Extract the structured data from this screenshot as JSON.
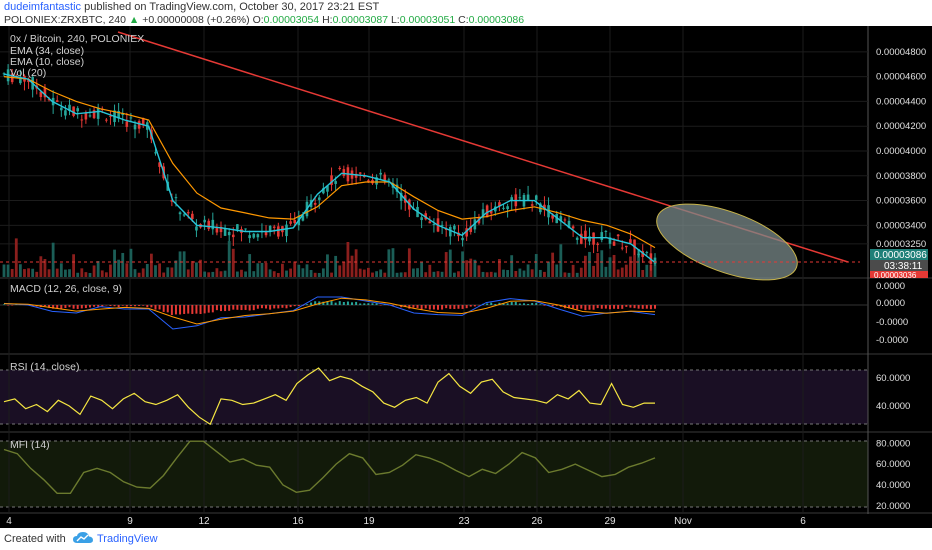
{
  "header": {
    "author": "dudeimfantastic",
    "published_text": " published on TradingView.com, October 30, 2017 23:21 EST",
    "symbol": "POLONIEX:ZRXBTC, 240",
    "change": "+0.00000008 (+0.26%)",
    "o_label": "O:",
    "o_value": "0.00003054",
    "h_label": "H:",
    "h_value": "0.00003087",
    "l_label": "L:",
    "l_value": "0.00003051",
    "c_label": "C:",
    "c_value": "0.00003086"
  },
  "footer": {
    "created_with": "Created with",
    "brand": "TradingView"
  },
  "colors": {
    "background": "#000000",
    "grid": "#1c1c1c",
    "ema34": "#ff9800",
    "ema10": "#26c6da",
    "trendline": "#e53935",
    "candle_up": "#26a69a",
    "candle_down": "#e53935",
    "rsi_line": "#f5e642",
    "rsi_band": "#1a0f24",
    "mfi_line": "#6b7a2e",
    "mfi_band": "#121a0a",
    "ellipse_fill": "#7a8a8a",
    "ellipse_stroke": "#c8b44a"
  },
  "chart_data": [
    {
      "type": "candlestick",
      "title": "0x / Bitcoin, 240, POLONIEX",
      "legend": [
        "EMA (34, close)",
        "EMA (10, close)",
        "Vol (20)"
      ],
      "x_ticks": [
        "4",
        "9",
        "12",
        "16",
        "19",
        "23",
        "26",
        "29",
        "Nov",
        "6"
      ],
      "y_ticks": [
        "0.00004800",
        "0.00004600",
        "0.00004400",
        "0.00004200",
        "0.00004000",
        "0.00003800",
        "0.00003600",
        "0.00003400",
        "0.00003250"
      ],
      "y_tick_values": [
        4.8e-05,
        4.6e-05,
        4.4e-05,
        4.2e-05,
        4e-05,
        3.8e-05,
        3.6e-05,
        3.4e-05,
        3.25e-05
      ],
      "ylim": [
        3.08e-05,
        4.96e-05
      ],
      "last_price_label": "0.00003086",
      "countdown_label": "03:38:11",
      "red_level_label": "0.00003036",
      "ema10_close": [
        4.62e-05,
        4.58e-05,
        4.4e-05,
        4.3e-05,
        4.32e-05,
        4.25e-05,
        4.2e-05,
        3.6e-05,
        3.4e-05,
        3.38e-05,
        3.35e-05,
        3.35e-05,
        3.38e-05,
        3.65e-05,
        3.82e-05,
        3.8e-05,
        3.75e-05,
        3.53e-05,
        3.4e-05,
        3.32e-05,
        3.5e-05,
        3.6e-05,
        3.6e-05,
        3.45e-05,
        3.3e-05,
        3.3e-05,
        3.25e-05,
        3.1e-05
      ],
      "ema34_close": [
        4.6e-05,
        4.58e-05,
        4.48e-05,
        4.4e-05,
        4.34e-05,
        4.3e-05,
        4.25e-05,
        3.9e-05,
        3.66e-05,
        3.54e-05,
        3.5e-05,
        3.46e-05,
        3.45e-05,
        3.55e-05,
        3.72e-05,
        3.75e-05,
        3.75e-05,
        3.63e-05,
        3.52e-05,
        3.45e-05,
        3.47e-05,
        3.52e-05,
        3.55e-05,
        3.5e-05,
        3.44e-05,
        3.4e-05,
        3.33e-05,
        3.22e-05
      ],
      "trendline": [
        [
          0,
          4.98e-05
        ],
        [
          1.0,
          3.1e-05
        ]
      ],
      "annotation": "ellipse near trendline end"
    },
    {
      "type": "line",
      "title": "MACD (12, 26, close, 9)",
      "y_ticks": [
        "0.0000",
        "0.0000",
        "-0.0000",
        "-0.0000"
      ]
    },
    {
      "type": "line",
      "title": "RSI (14, close)",
      "y_ticks": [
        "60.0000",
        "40.0000"
      ],
      "y_tick_values": [
        60,
        40
      ],
      "ylim": [
        25,
        72
      ],
      "values": [
        43,
        45,
        38,
        41,
        36,
        44,
        40,
        34,
        47,
        44,
        38,
        45,
        49,
        43,
        41,
        44,
        48,
        39,
        32,
        27,
        45,
        44,
        41,
        42,
        45,
        48,
        44,
        56,
        62,
        67,
        58,
        61,
        59,
        54,
        50,
        42,
        39,
        44,
        46,
        42,
        57,
        63,
        54,
        49,
        57,
        59,
        50,
        46,
        45,
        44,
        42,
        48,
        45,
        51,
        42,
        41,
        56,
        41,
        39,
        42,
        42
      ]
    },
    {
      "type": "line",
      "title": "MFI (14)",
      "y_ticks": [
        "80.0000",
        "60.0000",
        "40.0000",
        "20.0000"
      ],
      "y_tick_values": [
        80,
        60,
        40,
        20
      ],
      "ylim": [
        16,
        86
      ],
      "values": [
        74,
        70,
        56,
        45,
        32,
        32,
        52,
        56,
        52,
        43,
        38,
        37,
        49,
        66,
        82,
        82,
        72,
        62,
        65,
        59,
        57,
        40,
        33,
        35,
        47,
        60,
        70,
        66,
        50,
        52,
        59,
        69,
        66,
        61,
        54,
        48,
        55,
        51,
        60,
        71,
        66,
        52,
        55,
        60,
        54,
        48,
        50,
        57,
        61,
        66
      ]
    }
  ]
}
